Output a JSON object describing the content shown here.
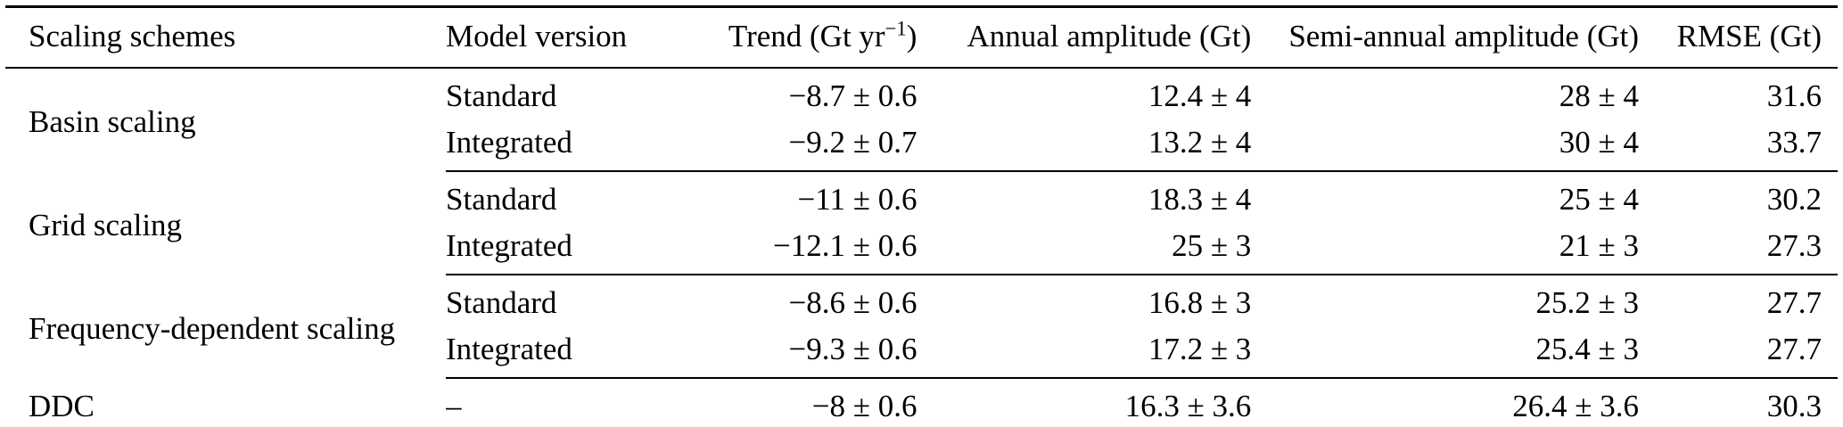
{
  "page": {
    "background": "#ffffff",
    "text_color": "#000000",
    "rule_color": "#000000"
  },
  "table": {
    "headers": {
      "scheme": "Scaling schemes",
      "model": "Model version",
      "trend_prefix": "Trend (Gt yr",
      "trend_exponent": "−1",
      "trend_suffix": ")",
      "annual": "Annual amplitude (Gt)",
      "semiannual": "Semi-annual amplitude (Gt)",
      "rmse": "RMSE (Gt)"
    },
    "groups": [
      {
        "scheme": "Basin scaling",
        "rows": [
          {
            "model": "Standard",
            "trend": "−8.7 ± 0.6",
            "annual": "12.4 ± 4",
            "semiannual": "28 ± 4",
            "rmse": "31.6"
          },
          {
            "model": "Integrated",
            "trend": "−9.2 ± 0.7",
            "annual": "13.2 ± 4",
            "semiannual": "30 ± 4",
            "rmse": "33.7"
          }
        ]
      },
      {
        "scheme": "Grid scaling",
        "rows": [
          {
            "model": "Standard",
            "trend": "−11 ± 0.6",
            "annual": "18.3 ± 4",
            "semiannual": "25 ± 4",
            "rmse": "30.2"
          },
          {
            "model": "Integrated",
            "trend": "−12.1 ± 0.6",
            "annual": "25 ± 3",
            "semiannual": "21 ± 3",
            "rmse": "27.3"
          }
        ]
      },
      {
        "scheme": "Frequency-dependent scaling",
        "rows": [
          {
            "model": "Standard",
            "trend": "−8.6 ± 0.6",
            "annual": "16.8 ± 3",
            "semiannual": "25.2 ± 3",
            "rmse": "27.7"
          },
          {
            "model": "Integrated",
            "trend": "−9.3 ± 0.6",
            "annual": "17.2 ± 3",
            "semiannual": "25.4 ± 3",
            "rmse": "27.7"
          }
        ]
      },
      {
        "scheme": "DDC",
        "rows": [
          {
            "model": "–",
            "trend": "−8 ± 0.6",
            "annual": "16.3 ± 3.6",
            "semiannual": "26.4 ± 3.6",
            "rmse": "30.3"
          }
        ]
      }
    ]
  }
}
